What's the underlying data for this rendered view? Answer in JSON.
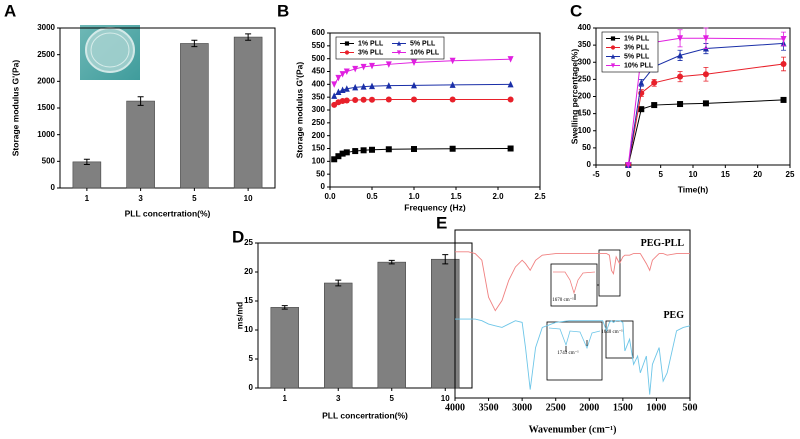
{
  "chart_data": [
    {
      "type": "bar",
      "panel": "A",
      "ylabel": "Storage modulus G'(Pa)",
      "xlabel": "PLL concertration(%)",
      "categories": [
        "1",
        "3",
        "5",
        "10"
      ],
      "values": [
        490,
        1630,
        2710,
        2830
      ],
      "errors": [
        50,
        80,
        60,
        60
      ],
      "color": "#808080",
      "ylim": [
        0,
        3000
      ],
      "yticks": [
        0,
        500,
        1000,
        1500,
        2000,
        2500,
        3000
      ]
    },
    {
      "type": "line",
      "panel": "B",
      "ylabel": "Storage modulus G'(Pa)",
      "xlabel": "Frequency (Hz)",
      "x": [
        0.05,
        0.1,
        0.15,
        0.2,
        0.3,
        0.4,
        0.5,
        0.7,
        1.0,
        1.46,
        2.15
      ],
      "series": [
        {
          "name": "1% PLL",
          "color": "#000000",
          "marker": "square",
          "values": [
            108,
            120,
            130,
            135,
            140,
            143,
            145,
            147,
            148,
            149,
            150
          ]
        },
        {
          "name": "3% PLL",
          "color": "#e8202a",
          "marker": "circle",
          "values": [
            320,
            330,
            335,
            337,
            339,
            340,
            340,
            341,
            341,
            341,
            341
          ]
        },
        {
          "name": "5% PLL",
          "color": "#1a2fa8",
          "marker": "triangle-up",
          "values": [
            355,
            370,
            378,
            383,
            388,
            391,
            393,
            395,
            396,
            398,
            400
          ]
        },
        {
          "name": "10% PLL",
          "color": "#e020e0",
          "marker": "triangle-down",
          "values": [
            400,
            425,
            440,
            450,
            460,
            468,
            472,
            478,
            485,
            492,
            498
          ]
        }
      ],
      "xlim": [
        0,
        2.5
      ],
      "xticks": [
        {
          "value": 0,
          "label": "0.0"
        },
        0.5,
        {
          "value": 1,
          "label": "1.0"
        },
        1.5,
        {
          "value": 2,
          "label": "2.0"
        },
        2.5
      ],
      "ylim": [
        0,
        600
      ],
      "yticks": [
        0,
        50,
        100,
        150,
        200,
        250,
        300,
        350,
        400,
        450,
        500,
        550,
        600
      ],
      "legend": "top-left",
      "legend_columns": 2
    },
    {
      "type": "line",
      "panel": "C",
      "ylabel": "Swelling percentage(%)",
      "xlabel": "Time(h)",
      "x": [
        0,
        2,
        4,
        8,
        12,
        24
      ],
      "series": [
        {
          "name": "1% PLL",
          "color": "#000000",
          "marker": "square",
          "values": [
            0,
            163,
            175,
            178,
            180,
            190
          ],
          "errors": [
            0,
            5,
            5,
            5,
            5,
            5
          ]
        },
        {
          "name": "3% PLL",
          "color": "#e8202a",
          "marker": "circle",
          "values": [
            0,
            210,
            240,
            258,
            265,
            295
          ],
          "errors": [
            0,
            10,
            10,
            15,
            20,
            20
          ]
        },
        {
          "name": "5% PLL",
          "color": "#1a2fa8",
          "marker": "triangle-up",
          "values": [
            0,
            240,
            287,
            320,
            340,
            355
          ],
          "errors": [
            0,
            10,
            15,
            15,
            15,
            20
          ]
        },
        {
          "name": "10% PLL",
          "color": "#e020e0",
          "marker": "triangle-down",
          "values": [
            0,
            320,
            358,
            370,
            370,
            368
          ],
          "errors": [
            0,
            15,
            15,
            25,
            30,
            20
          ]
        }
      ],
      "xlim": [
        -5,
        25
      ],
      "xticks": [
        -5,
        0,
        5,
        10,
        15,
        20,
        25
      ],
      "ylim": [
        0,
        400
      ],
      "yticks": [
        0,
        50,
        100,
        150,
        200,
        250,
        300,
        350,
        400
      ],
      "legend": "top-left",
      "legend_columns": 1
    },
    {
      "type": "bar",
      "panel": "D",
      "ylabel": "ms/md",
      "xlabel": "PLL concertration(%)",
      "categories": [
        "1",
        "3",
        "5",
        "10"
      ],
      "values": [
        13.9,
        18.1,
        21.7,
        22.2
      ],
      "errors": [
        0.3,
        0.5,
        0.3,
        0.8
      ],
      "color": "#808080",
      "ylim": [
        0,
        25
      ],
      "yticks": [
        0,
        5,
        10,
        15,
        20,
        25
      ]
    },
    {
      "type": "line",
      "panel": "E",
      "xlabel": "Wavenumber (cm⁻¹)",
      "x": [
        4000,
        3800,
        3700,
        3600,
        3500,
        3400,
        3300,
        3200,
        3100,
        3000,
        2950,
        2880,
        2800,
        2700,
        2500,
        2300,
        2100,
        2000,
        1900,
        1800,
        1743,
        1700,
        1670,
        1640,
        1600,
        1550,
        1500,
        1470,
        1400,
        1340,
        1280,
        1240,
        1150,
        1100,
        1060,
        960,
        900,
        840,
        700,
        600,
        500
      ],
      "series": [
        {
          "name": "PEG-PLL",
          "color": "#f08080",
          "values": [
            87,
            87,
            86,
            82,
            60,
            52,
            58,
            70,
            78,
            82,
            80,
            76,
            82,
            85,
            86,
            86,
            86,
            86,
            86,
            86,
            86,
            85,
            76,
            74,
            84,
            80,
            84,
            85,
            85,
            86,
            86,
            86,
            80,
            76,
            82,
            86,
            86,
            85,
            86,
            86,
            86
          ]
        },
        {
          "name": "PEG",
          "color": "#6ec6e8",
          "values": [
            47,
            47,
            47,
            46,
            44,
            43,
            42,
            44,
            46,
            45,
            30,
            5,
            30,
            42,
            45,
            46,
            46,
            46,
            46,
            46,
            40,
            45,
            46,
            45,
            46,
            46,
            45,
            28,
            35,
            20,
            25,
            15,
            25,
            2,
            20,
            30,
            10,
            15,
            40,
            42,
            43
          ]
        }
      ],
      "xlim": [
        4000,
        500
      ],
      "xticks": [
        4000,
        3500,
        3000,
        2500,
        2000,
        1500,
        1000,
        500
      ],
      "ylim": [
        0,
        100
      ],
      "series_labels": "inline",
      "annotations": [
        "1670 cm⁻¹",
        "1640 cm⁻¹",
        "1743 cm⁻¹"
      ]
    }
  ]
}
